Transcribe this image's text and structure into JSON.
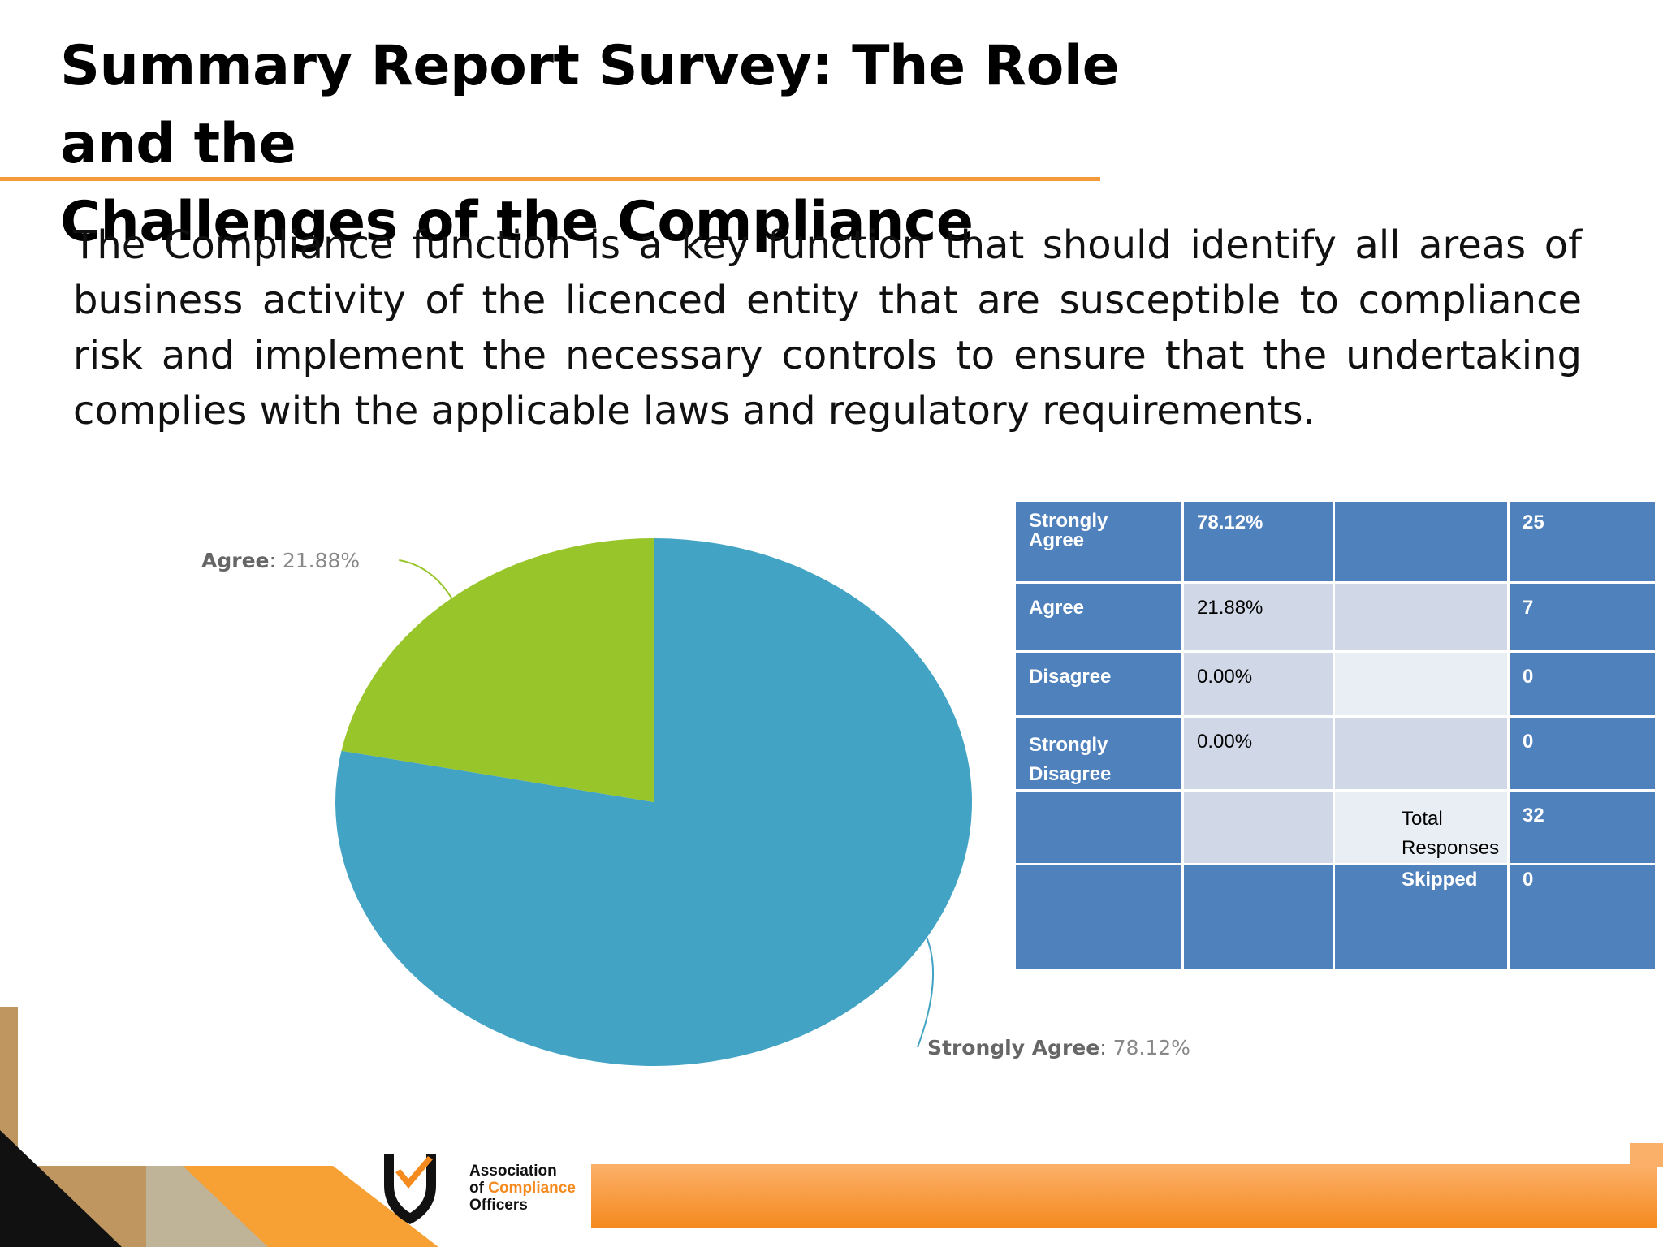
{
  "slide": {
    "title_line1": "Summary Report Survey: The Role and the",
    "title_line2": "Challenges of the Compliance",
    "body": " The Compliance function is a key function that should identify all areas of business activity of   the licenced entity that are susceptible to compliance risk and implement the necessary controls to ensure that the undertaking complies with the applicable laws and regulatory requirements."
  },
  "chart_data": {
    "type": "pie",
    "slices": [
      {
        "label": "Strongly Agree",
        "value": 78.12,
        "display": "78.12%",
        "color": "#42a3c4"
      },
      {
        "label": "Agree",
        "value": 21.88,
        "display": "21.88%",
        "color": "#97c52a"
      }
    ]
  },
  "table": {
    "rows": [
      {
        "c1a": "Strongly",
        "c1b": "Agree",
        "c2": "78.12%",
        "c3a": "",
        "c3b": "",
        "c4": "25"
      },
      {
        "c1a": "Agree",
        "c1b": "",
        "c2": "21.88%",
        "c3a": "",
        "c3b": "",
        "c4": "7"
      },
      {
        "c1a": "Disagree",
        "c1b": "",
        "c2": "0.00%",
        "c3a": "",
        "c3b": "",
        "c4": "0"
      },
      {
        "c1a": "Strongly",
        "c1b": "Disagree",
        "c2": "0.00%",
        "c3a": "",
        "c3b": "",
        "c4": "0"
      },
      {
        "c1a": "",
        "c1b": "",
        "c2": "",
        "c3a": "Total",
        "c3b": "Responses",
        "c4": "32"
      },
      {
        "c1a": "",
        "c1b": "",
        "c2": "",
        "c3a": "Skipped",
        "c3b": "",
        "c4": "0"
      }
    ]
  },
  "logo": {
    "line1": "Association",
    "line2_prefix": "of",
    "line2_accent": "Compliance",
    "line3": "Officers"
  },
  "colors": {
    "accent_orange": "#f59a3a",
    "table_blue": "#4f81bd",
    "table_light": "#d0d8e8",
    "table_lighter": "#e9edf4"
  }
}
